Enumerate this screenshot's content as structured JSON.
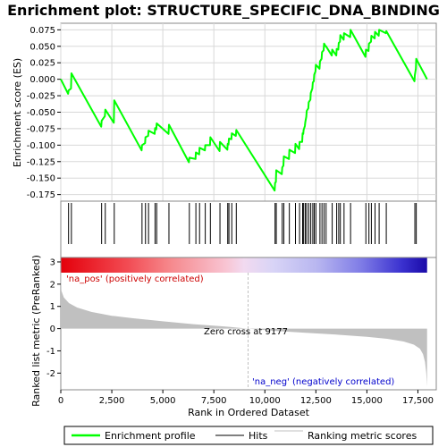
{
  "colors": {
    "enrichment": "#00ff00",
    "hits": "#000000",
    "metric_fill": "#c0c0c0",
    "pos_label": "#cc0000",
    "neg_label": "#0000cc",
    "grid": "#d8d8d8",
    "frame": "#888888"
  },
  "chart_data": {
    "type": "line",
    "title": "Enrichment plot: STRUCTURE_SPECIFIC_DNA_BINDING",
    "xlabel": "Rank in Ordered Dataset",
    "x_ticks": [
      0,
      2500,
      5000,
      7500,
      10000,
      12500,
      15000,
      17500
    ],
    "x_tick_labels": [
      "0",
      "2,500",
      "5,000",
      "7,500",
      "10,000",
      "12,500",
      "15,000",
      "17,500"
    ],
    "xlim": [
      0,
      18400
    ],
    "n_genes": 17950,
    "es_panel": {
      "ylabel": "Enrichment score (ES)",
      "ylim": [
        -0.185,
        0.085
      ],
      "y_ticks": [
        -0.175,
        -0.15,
        -0.125,
        -0.1,
        -0.075,
        -0.05,
        -0.025,
        0.0,
        0.025,
        0.05,
        0.075
      ],
      "y_tick_labels": [
        "-0.175",
        "-0.150",
        "-0.125",
        "-0.100",
        "-0.075",
        "-0.050",
        "-0.025",
        "0.000",
        "0.025",
        "0.050",
        "0.075"
      ],
      "max_es": 0.075,
      "min_es": -0.17
    },
    "hits": [
      380,
      520,
      2000,
      2180,
      2620,
      3980,
      4150,
      4300,
      4620,
      4700,
      5300,
      6300,
      6620,
      6800,
      7080,
      7330,
      7800,
      8180,
      8240,
      8380,
      8600,
      10500,
      10560,
      10850,
      10930,
      11200,
      11500,
      11700,
      11850,
      11900,
      11980,
      12050,
      12150,
      12250,
      12350,
      12420,
      12500,
      12700,
      12800,
      12900,
      13000,
      13300,
      13520,
      13620,
      13700,
      13880,
      14200,
      14950,
      15100,
      15220,
      15400,
      15600,
      15950,
      17350,
      17420
    ],
    "es_line": {
      "x": [
        0,
        360,
        380,
        500,
        520,
        1980,
        2000,
        2160,
        2180,
        2600,
        2620,
        3960,
        3980,
        4130,
        4150,
        4280,
        4300,
        4600,
        4620,
        4680,
        4700,
        5280,
        5300,
        6280,
        6300,
        6600,
        6620,
        6780,
        6800,
        7060,
        7080,
        7310,
        7330,
        7780,
        7800,
        8160,
        8180,
        8220,
        8240,
        8360,
        8380,
        8580,
        8600,
        10480,
        10500,
        10540,
        10560,
        10830,
        10850,
        10910,
        10930,
        11180,
        11200,
        11480,
        11500,
        11680,
        11700,
        11830,
        11850,
        11880,
        11900,
        11960,
        11980,
        12030,
        12050,
        12130,
        12150,
        12230,
        12250,
        12330,
        12350,
        12400,
        12420,
        12480,
        12500,
        12680,
        12700,
        12780,
        12800,
        12880,
        12900,
        12980,
        13000,
        13280,
        13300,
        13500,
        13520,
        13600,
        13620,
        13680,
        13700,
        13860,
        13880,
        14180,
        14200,
        14930,
        14950,
        15080,
        15100,
        15200,
        15220,
        15380,
        15400,
        15580,
        15600,
        15930,
        15950,
        17330,
        17350,
        17400,
        17420,
        17950
      ],
      "y": [
        0.0,
        -0.022,
        -0.017,
        -0.014,
        0.009,
        -0.072,
        -0.063,
        -0.056,
        -0.046,
        -0.066,
        -0.032,
        -0.108,
        -0.1,
        -0.097,
        -0.088,
        -0.086,
        -0.078,
        -0.083,
        -0.074,
        -0.076,
        -0.067,
        -0.083,
        -0.069,
        -0.126,
        -0.119,
        -0.121,
        -0.111,
        -0.114,
        -0.104,
        -0.108,
        -0.1,
        -0.1,
        -0.088,
        -0.109,
        -0.095,
        -0.107,
        -0.098,
        -0.099,
        -0.09,
        -0.091,
        -0.082,
        -0.086,
        -0.077,
        -0.169,
        -0.157,
        -0.156,
        -0.138,
        -0.144,
        -0.134,
        -0.131,
        -0.117,
        -0.121,
        -0.107,
        -0.112,
        -0.098,
        -0.106,
        -0.095,
        -0.095,
        -0.082,
        -0.083,
        -0.077,
        -0.071,
        -0.065,
        -0.057,
        -0.048,
        -0.044,
        -0.035,
        -0.031,
        -0.021,
        -0.014,
        -0.005,
        -0.003,
        0.007,
        0.012,
        0.022,
        0.016,
        0.027,
        0.031,
        0.041,
        0.044,
        0.054,
        0.05,
        0.05,
        0.036,
        0.045,
        0.036,
        0.046,
        0.045,
        0.055,
        0.057,
        0.067,
        0.06,
        0.07,
        0.064,
        0.075,
        0.034,
        0.045,
        0.043,
        0.054,
        0.057,
        0.066,
        0.062,
        0.072,
        0.066,
        0.075,
        0.07,
        0.073,
        -0.003,
        0.006,
        0.016,
        0.031,
        0.0
      ]
    },
    "metric_panel": {
      "ylabel": "Ranked list metric (PreRanked)",
      "ylim": [
        -2.75,
        3.2
      ],
      "y_ticks": [
        -2,
        -1,
        0,
        1,
        2,
        3
      ],
      "y_tick_labels": [
        "-2",
        "-1",
        "0",
        "1",
        "2",
        "3"
      ],
      "metric_x": [
        0,
        30,
        150,
        400,
        800,
        1500,
        2500,
        3500,
        5000,
        6500,
        8000,
        9177,
        10500,
        12000,
        13500,
        15000,
        16000,
        16800,
        17300,
        17600,
        17750,
        17850,
        17910,
        17950
      ],
      "metric_y": [
        3.1,
        1.7,
        1.4,
        1.15,
        0.95,
        0.75,
        0.58,
        0.47,
        0.33,
        0.2,
        0.1,
        0.0,
        -0.1,
        -0.19,
        -0.27,
        -0.37,
        -0.46,
        -0.58,
        -0.72,
        -0.9,
        -1.15,
        -1.5,
        -2.0,
        -2.6
      ],
      "zero_cross": 9177
    },
    "annotations": {
      "pos_label": "'na_pos' (positively correlated)",
      "neg_label": "'na_neg' (negatively correlated)",
      "zero_cross_label": "Zero cross at 9177"
    },
    "legend": {
      "items": [
        {
          "label": "Enrichment profile",
          "style": "green-line"
        },
        {
          "label": "Hits",
          "style": "black-line"
        },
        {
          "label": "Ranking metric scores",
          "style": "gray-line"
        }
      ]
    }
  }
}
